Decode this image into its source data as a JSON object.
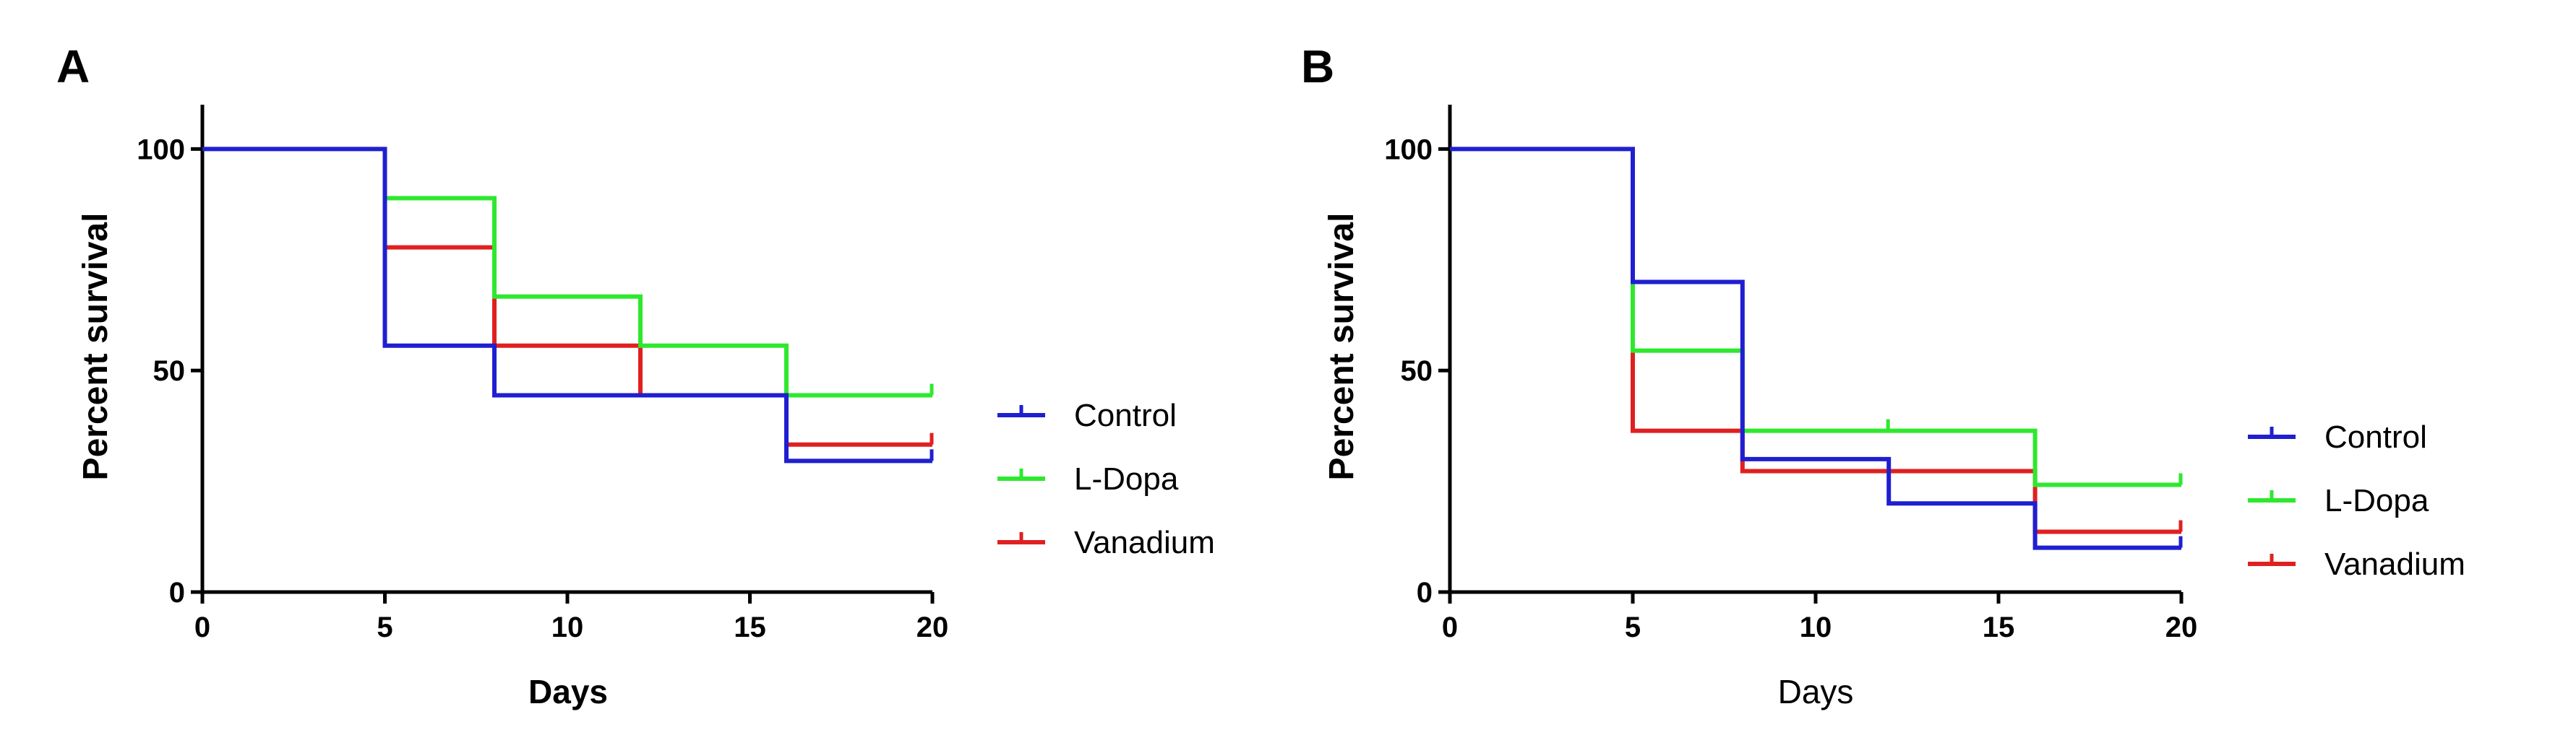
{
  "chart_data": [
    {
      "type": "line",
      "panel_label": "A",
      "xlabel": "Days",
      "ylabel": "Percent survival",
      "xlim": [
        0,
        20
      ],
      "ylim": [
        0,
        110
      ],
      "xticks": [
        0,
        5,
        10,
        15,
        20
      ],
      "yticks": [
        0,
        50,
        100
      ],
      "legend_placement": "right",
      "series": [
        {
          "name": "Control",
          "color": "#1f1fd1",
          "points": [
            [
              0,
              100
            ],
            [
              5,
              100
            ],
            [
              5,
              55.6
            ],
            [
              8,
              55.6
            ],
            [
              8,
              44.4
            ],
            [
              16,
              44.4
            ],
            [
              16,
              29.6
            ],
            [
              20,
              29.6
            ]
          ],
          "censored": [
            [
              20,
              29.6
            ]
          ]
        },
        {
          "name": "L-Dopa",
          "color": "#2ee82e",
          "points": [
            [
              5,
              100
            ],
            [
              5,
              88.9
            ],
            [
              8,
              88.9
            ],
            [
              8,
              66.7
            ],
            [
              12,
              66.7
            ],
            [
              12,
              55.6
            ],
            [
              16,
              55.6
            ],
            [
              16,
              44.4
            ],
            [
              20,
              44.4
            ]
          ],
          "censored": [
            [
              20,
              44.4
            ]
          ]
        },
        {
          "name": "Vanadium",
          "color": "#e02020",
          "points": [
            [
              5,
              100
            ],
            [
              5,
              77.8
            ],
            [
              8,
              77.8
            ],
            [
              8,
              55.6
            ],
            [
              12,
              55.6
            ],
            [
              12,
              44.4
            ],
            [
              16,
              44.4
            ],
            [
              16,
              33.3
            ],
            [
              20,
              33.3
            ]
          ],
          "censored": [
            [
              20,
              33.3
            ]
          ]
        }
      ]
    },
    {
      "type": "line",
      "panel_label": "B",
      "xlabel": "Days",
      "ylabel": "Percent survival",
      "xlim": [
        0,
        20
      ],
      "ylim": [
        0,
        110
      ],
      "xticks": [
        0,
        5,
        10,
        15,
        20
      ],
      "yticks": [
        0,
        50,
        100
      ],
      "legend_placement": "right",
      "series": [
        {
          "name": "Control",
          "color": "#1f1fd1",
          "points": [
            [
              0,
              100
            ],
            [
              5,
              100
            ],
            [
              5,
              70
            ],
            [
              8,
              70
            ],
            [
              8,
              30
            ],
            [
              12,
              30
            ],
            [
              12,
              20
            ],
            [
              16,
              20
            ],
            [
              16,
              10
            ],
            [
              20,
              10
            ]
          ],
          "censored": [
            [
              20,
              10
            ]
          ]
        },
        {
          "name": "L-Dopa",
          "color": "#2ee82e",
          "points": [
            [
              5,
              100
            ],
            [
              5,
              54.5
            ],
            [
              8,
              54.5
            ],
            [
              8,
              36.4
            ],
            [
              16,
              36.4
            ],
            [
              16,
              24.2
            ],
            [
              20,
              24.2
            ]
          ],
          "censored": [
            [
              12,
              36.4
            ],
            [
              20,
              24.2
            ]
          ]
        },
        {
          "name": "Vanadium",
          "color": "#e02020",
          "points": [
            [
              5,
              100
            ],
            [
              5,
              36.4
            ],
            [
              8,
              36.4
            ],
            [
              8,
              27.3
            ],
            [
              16,
              27.3
            ],
            [
              16,
              13.6
            ],
            [
              20,
              13.6
            ]
          ],
          "censored": [
            [
              20,
              13.6
            ]
          ]
        }
      ]
    }
  ]
}
